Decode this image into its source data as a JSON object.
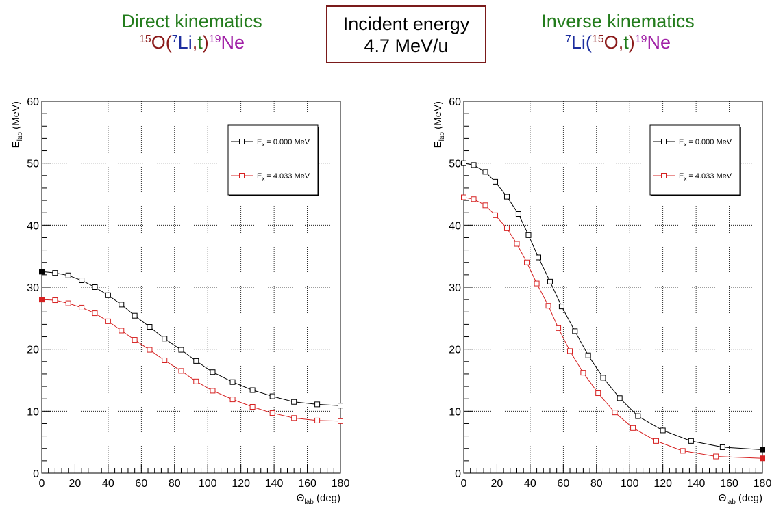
{
  "header": {
    "left": {
      "title": "Direct kinematics",
      "reaction": [
        {
          "t": "15",
          "sup": true,
          "c": "#8b1a1a"
        },
        {
          "t": "O",
          "c": "#8b1a1a"
        },
        {
          "t": "(",
          "c": "#8b1a1a"
        },
        {
          "t": "7",
          "sup": true,
          "c": "#1c2d9e"
        },
        {
          "t": "Li",
          "c": "#1c2d9e"
        },
        {
          "t": ",",
          "c": "#8b1a1a"
        },
        {
          "t": "t",
          "c": "#237c1c"
        },
        {
          "t": ")",
          "c": "#8b1a1a"
        },
        {
          "t": "19",
          "sup": true,
          "c": "#a01fa6"
        },
        {
          "t": "Ne",
          "c": "#a01fa6"
        }
      ]
    },
    "center": {
      "line1": "Incident energy",
      "line2": "4.7 MeV/u"
    },
    "right": {
      "title": "Inverse kinematics",
      "reaction": [
        {
          "t": "7",
          "sup": true,
          "c": "#1c2d9e"
        },
        {
          "t": "Li",
          "c": "#1c2d9e"
        },
        {
          "t": "(",
          "c": "#1c2d9e"
        },
        {
          "t": "15",
          "sup": true,
          "c": "#8b1a1a"
        },
        {
          "t": "O",
          "c": "#8b1a1a"
        },
        {
          "t": ",",
          "c": "#8b1a1a"
        },
        {
          "t": "t",
          "c": "#237c1c"
        },
        {
          "t": ")",
          "c": "#8b1a1a"
        },
        {
          "t": "19",
          "sup": true,
          "c": "#a01fa6"
        },
        {
          "t": "Ne",
          "c": "#a01fa6"
        }
      ]
    }
  },
  "chart_data": [
    {
      "type": "line",
      "panel": "direct",
      "xlabel": "Θ",
      "xlabel_sub": "lab",
      "xlabel_unit": " (deg)",
      "ylabel": "E",
      "ylabel_sub": "lab",
      "ylabel_unit": " (MeV)",
      "xlim": [
        0,
        180
      ],
      "ylim": [
        0,
        60
      ],
      "xticks": [
        0,
        20,
        40,
        60,
        80,
        100,
        120,
        140,
        160,
        180
      ],
      "yticks": [
        0,
        10,
        20,
        30,
        40,
        50,
        60
      ],
      "grid": true,
      "legend_position": "top-right",
      "series": [
        {
          "name": "E",
          "name_sub": "x",
          "name_rest": " = 0.000 MeV",
          "color": "#000000",
          "x": [
            0,
            8,
            16,
            24,
            32,
            40,
            48,
            56,
            65,
            74,
            84,
            93,
            103,
            115,
            127,
            139,
            152,
            166,
            180
          ],
          "y": [
            32.5,
            32.3,
            31.9,
            31.1,
            30.0,
            28.7,
            27.2,
            25.4,
            23.6,
            21.7,
            19.9,
            18.1,
            16.3,
            14.7,
            13.4,
            12.4,
            11.5,
            11.1,
            10.9
          ],
          "filled_endpoint": 0
        },
        {
          "name": "E",
          "name_sub": "x",
          "name_rest": " = 4.033 MeV",
          "color": "#d62020",
          "x": [
            0,
            8,
            16,
            24,
            32,
            40,
            48,
            56,
            65,
            74,
            84,
            93,
            103,
            115,
            127,
            139,
            152,
            166,
            180
          ],
          "y": [
            28.0,
            27.9,
            27.4,
            26.7,
            25.8,
            24.5,
            23.0,
            21.5,
            19.9,
            18.2,
            16.5,
            14.8,
            13.3,
            11.9,
            10.7,
            9.7,
            8.9,
            8.5,
            8.4
          ],
          "filled_endpoint": 0
        }
      ]
    },
    {
      "type": "line",
      "panel": "inverse",
      "xlabel": "Θ",
      "xlabel_sub": "lab",
      "xlabel_unit": " (deg)",
      "ylabel": "E",
      "ylabel_sub": "lab",
      "ylabel_unit": " (MeV)",
      "xlim": [
        0,
        180
      ],
      "ylim": [
        0,
        60
      ],
      "xticks": [
        0,
        20,
        40,
        60,
        80,
        100,
        120,
        140,
        160,
        180
      ],
      "yticks": [
        0,
        10,
        20,
        30,
        40,
        50,
        60
      ],
      "grid": true,
      "legend_position": "top-right",
      "series": [
        {
          "name": "E",
          "name_sub": "x",
          "name_rest": " = 0.000 MeV",
          "color": "#000000",
          "x": [
            0,
            6,
            13,
            19,
            26,
            33,
            39,
            45,
            52,
            59,
            67,
            75,
            84,
            94,
            105,
            120,
            137,
            156,
            180
          ],
          "y": [
            50.0,
            49.7,
            48.6,
            47.0,
            44.6,
            41.8,
            38.4,
            34.8,
            30.9,
            26.9,
            22.9,
            19.0,
            15.4,
            12.1,
            9.2,
            6.9,
            5.2,
            4.2,
            3.8
          ],
          "filled_endpoint": 18
        },
        {
          "name": "E",
          "name_sub": "x",
          "name_rest": " = 4.033 MeV",
          "color": "#d62020",
          "x": [
            0,
            6,
            13,
            19,
            26,
            32,
            38,
            44,
            51,
            57,
            64,
            72,
            81,
            91,
            102,
            116,
            132,
            152,
            180
          ],
          "y": [
            44.5,
            44.2,
            43.2,
            41.6,
            39.5,
            37.0,
            34.0,
            30.6,
            27.0,
            23.4,
            19.7,
            16.2,
            12.9,
            9.8,
            7.3,
            5.2,
            3.6,
            2.7,
            2.4
          ],
          "filled_endpoint": 18
        }
      ]
    }
  ]
}
